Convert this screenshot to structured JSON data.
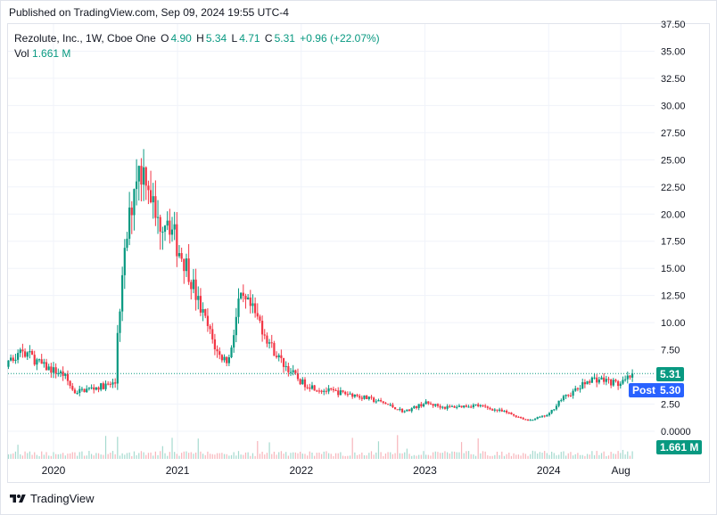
{
  "header": {
    "published": "Published on TradingView.com, Sep 09, 2024 19:55 UTC-4"
  },
  "legend": {
    "symbol": "Rezolute, Inc., 1W, Cboe One",
    "o_label": "O",
    "o_value": "4.90",
    "h_label": "H",
    "h_value": "5.34",
    "l_label": "L",
    "l_value": "4.71",
    "c_label": "C",
    "c_value": "5.31",
    "change": "+0.96 (+22.07%)",
    "vol_label": "Vol",
    "vol_value": "1.661 M"
  },
  "tags": {
    "last_price": "5.31",
    "post_label": "Post",
    "post_price": "5.30",
    "volume": "1.661 M"
  },
  "footer": {
    "brand": "TradingView"
  },
  "colors": {
    "up": "#089981",
    "down": "#f23645",
    "post": "#2962ff",
    "grid": "#f0f3fa"
  },
  "chart_data": {
    "type": "candlestick",
    "y_ticks": [
      "37.50",
      "35.00",
      "32.50",
      "30.00",
      "27.50",
      "25.00",
      "22.50",
      "20.00",
      "17.50",
      "15.00",
      "12.50",
      "10.00",
      "7.50",
      "5.00",
      "2.50",
      "0.0000"
    ],
    "x_ticks": [
      "2020",
      "2021",
      "2022",
      "2023",
      "2024",
      "Aug"
    ],
    "ylim": [
      0,
      37.5
    ],
    "grid": true,
    "series": [
      {
        "name": "Price",
        "anchors": [
          [
            "2019-05",
            7.0
          ],
          [
            "2019-06",
            6.0
          ],
          [
            "2019-08",
            5.5
          ],
          [
            "2019-10",
            7.5
          ],
          [
            "2019-12",
            6.0
          ],
          [
            "2020-02",
            5.2
          ],
          [
            "2020-03",
            3.6
          ],
          [
            "2020-05",
            4.0
          ],
          [
            "2020-07",
            4.4
          ],
          [
            "2020-07",
            7.0
          ],
          [
            "2020-08",
            17.0
          ],
          [
            "2020-09",
            24.0
          ],
          [
            "2020-10",
            24.0
          ],
          [
            "2020-11",
            19.0
          ],
          [
            "2020-12",
            20.0
          ],
          [
            "2021-01",
            17.0
          ],
          [
            "2021-02",
            15.0
          ],
          [
            "2021-03",
            12.0
          ],
          [
            "2021-04",
            9.5
          ],
          [
            "2021-05",
            7.0
          ],
          [
            "2021-06",
            6.5
          ],
          [
            "2021-07",
            12.0
          ],
          [
            "2021-08",
            11.5
          ],
          [
            "2021-09",
            10.0
          ],
          [
            "2021-10",
            8.0
          ],
          [
            "2021-11",
            6.5
          ],
          [
            "2022-01",
            4.5
          ],
          [
            "2022-03",
            3.8
          ],
          [
            "2022-06",
            3.4
          ],
          [
            "2022-09",
            2.6
          ],
          [
            "2022-11",
            1.8
          ],
          [
            "2023-01",
            2.6
          ],
          [
            "2023-03",
            2.2
          ],
          [
            "2023-06",
            2.4
          ],
          [
            "2023-09",
            1.7
          ],
          [
            "2023-11",
            1.0
          ],
          [
            "2024-01",
            1.5
          ],
          [
            "2024-02",
            2.8
          ],
          [
            "2024-04",
            4.0
          ],
          [
            "2024-05",
            4.8
          ],
          [
            "2024-06",
            4.8
          ],
          [
            "2024-08",
            4.3
          ],
          [
            "2024-09",
            5.31
          ]
        ]
      }
    ]
  }
}
